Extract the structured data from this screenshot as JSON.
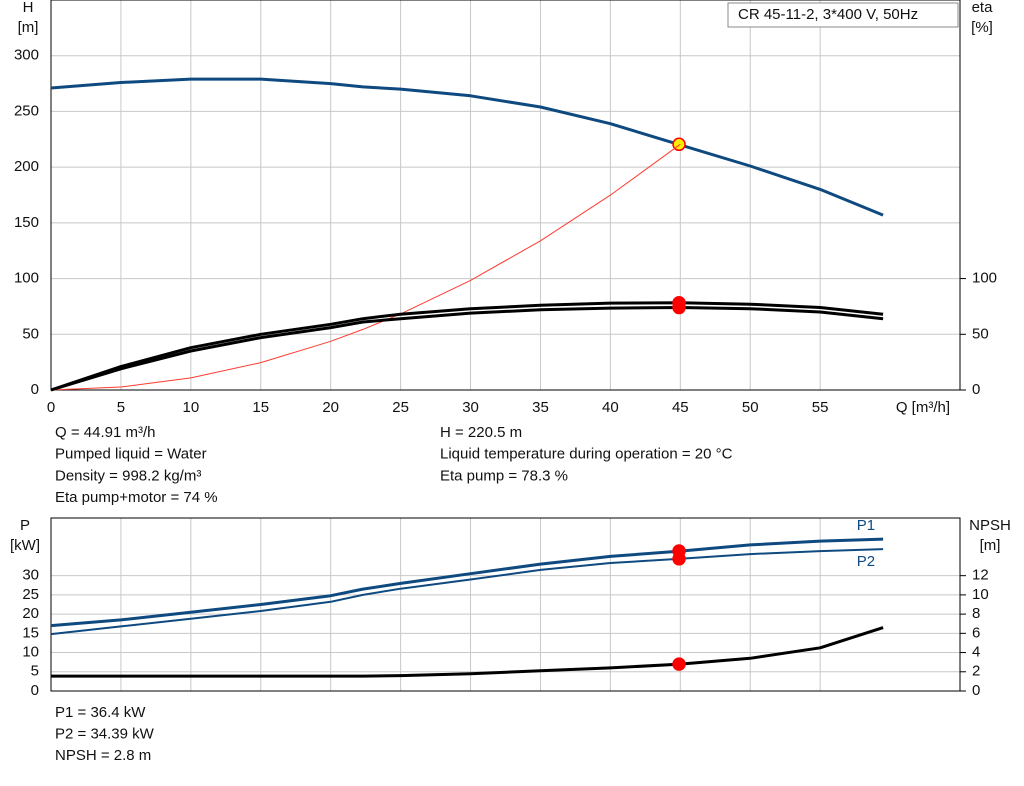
{
  "legend_box": "CR 45-11-2, 3*400 V, 50Hz",
  "chart_data": [
    {
      "type": "line",
      "y_label": "H",
      "y_unit": "[m]",
      "y2_label": "eta",
      "y2_unit": "[%]",
      "x_label": "Q [m³/h]",
      "x": [
        0,
        5,
        10,
        15,
        20,
        22.3,
        25,
        30,
        35,
        40,
        45,
        50,
        55,
        59.5
      ],
      "xlim": [
        0,
        65
      ],
      "xticks": [
        0,
        5,
        10,
        15,
        20,
        25,
        30,
        35,
        40,
        45,
        50,
        55
      ],
      "ylim": [
        0,
        350
      ],
      "yticks": [
        0,
        50,
        100,
        150,
        200,
        250,
        300
      ],
      "y2lim": [
        0,
        350
      ],
      "y2ticks": [
        0,
        50,
        100
      ],
      "grid": true,
      "duty_x": 44.91,
      "series": [
        {
          "color": "#0e4a80",
          "width": 3,
          "values": [
            271,
            276,
            279,
            279,
            275,
            272,
            270,
            264,
            254,
            239,
            220,
            201,
            180,
            157
          ],
          "duty_value": 220.5,
          "marker_color": "#ffee00"
        },
        {
          "color": "#ff3b30",
          "width": 1,
          "values": [
            0,
            2.7,
            10.9,
            24.6,
            43.7,
            54.4,
            68.3,
            98.4,
            133.9,
            174.9,
            220.5,
            null,
            null,
            null
          ]
        },
        {
          "color": "#000000",
          "width": 3,
          "axis": "y2",
          "values": [
            0,
            21,
            38,
            50,
            59,
            64,
            68,
            73,
            76,
            78,
            78.3,
            77,
            74,
            68
          ],
          "duty_value": 78.3,
          "marker_color": "#ff0000"
        },
        {
          "color": "#000000",
          "width": 3,
          "axis": "y2",
          "values": [
            0,
            19,
            35,
            47,
            56,
            61,
            64,
            69,
            72,
            73.5,
            74,
            73,
            70,
            64
          ],
          "duty_value": 74,
          "marker_color": "#ff0000"
        }
      ],
      "info_left": [
        "Q = 44.91 m³/h",
        "Pumped liquid = Water",
        "Density = 998.2 kg/m³",
        "Eta pump+motor = 74 %"
      ],
      "info_right": [
        "H = 220.5 m",
        "Liquid temperature during operation = 20 °C",
        "Eta pump = 78.3 %"
      ]
    },
    {
      "type": "line",
      "y_label": "P",
      "y_unit": "[kW]",
      "y2_label": "NPSH",
      "y2_unit": "[m]",
      "x": [
        0,
        5,
        10,
        15,
        20,
        22.3,
        25,
        30,
        35,
        40,
        45,
        50,
        55,
        59.5
      ],
      "xlim": [
        0,
        65
      ],
      "xticks": [
        0,
        5,
        10,
        15,
        20,
        25,
        30,
        35,
        40,
        45,
        50,
        55
      ],
      "ylim": [
        0,
        45
      ],
      "yticks": [
        0,
        5,
        10,
        15,
        20,
        25,
        30
      ],
      "y2lim": [
        0,
        18
      ],
      "y2ticks": [
        0,
        2,
        4,
        6,
        8,
        10,
        12
      ],
      "grid": true,
      "duty_x": 44.91,
      "series": [
        {
          "name": "P1",
          "color": "#0e4a80",
          "width": 3,
          "values": [
            17,
            18.5,
            20.5,
            22.5,
            24.8,
            26.5,
            28,
            30.5,
            33,
            35,
            36.4,
            38,
            39,
            39.5
          ],
          "duty_value": 36.4,
          "marker_color": "#ff0000",
          "label_side": "above"
        },
        {
          "name": "P2",
          "color": "#0e4a80",
          "width": 2,
          "values": [
            14.8,
            16.8,
            18.8,
            20.8,
            23.2,
            25,
            26.6,
            29,
            31.5,
            33.3,
            34.39,
            35.6,
            36.4,
            36.9
          ],
          "duty_value": 34.39,
          "marker_color": "#ff0000",
          "label_side": "below"
        },
        {
          "color": "#000000",
          "width": 3,
          "axis": "y2",
          "values": [
            1.55,
            1.55,
            1.55,
            1.55,
            1.55,
            1.55,
            1.6,
            1.8,
            2.1,
            2.4,
            2.8,
            3.4,
            4.5,
            6.6
          ],
          "duty_value": 2.8,
          "marker_color": "#ff0000"
        }
      ],
      "info_left": [
        "P1 = 36.4 kW",
        "P2 = 34.39 kW",
        "NPSH = 2.8 m"
      ]
    }
  ]
}
